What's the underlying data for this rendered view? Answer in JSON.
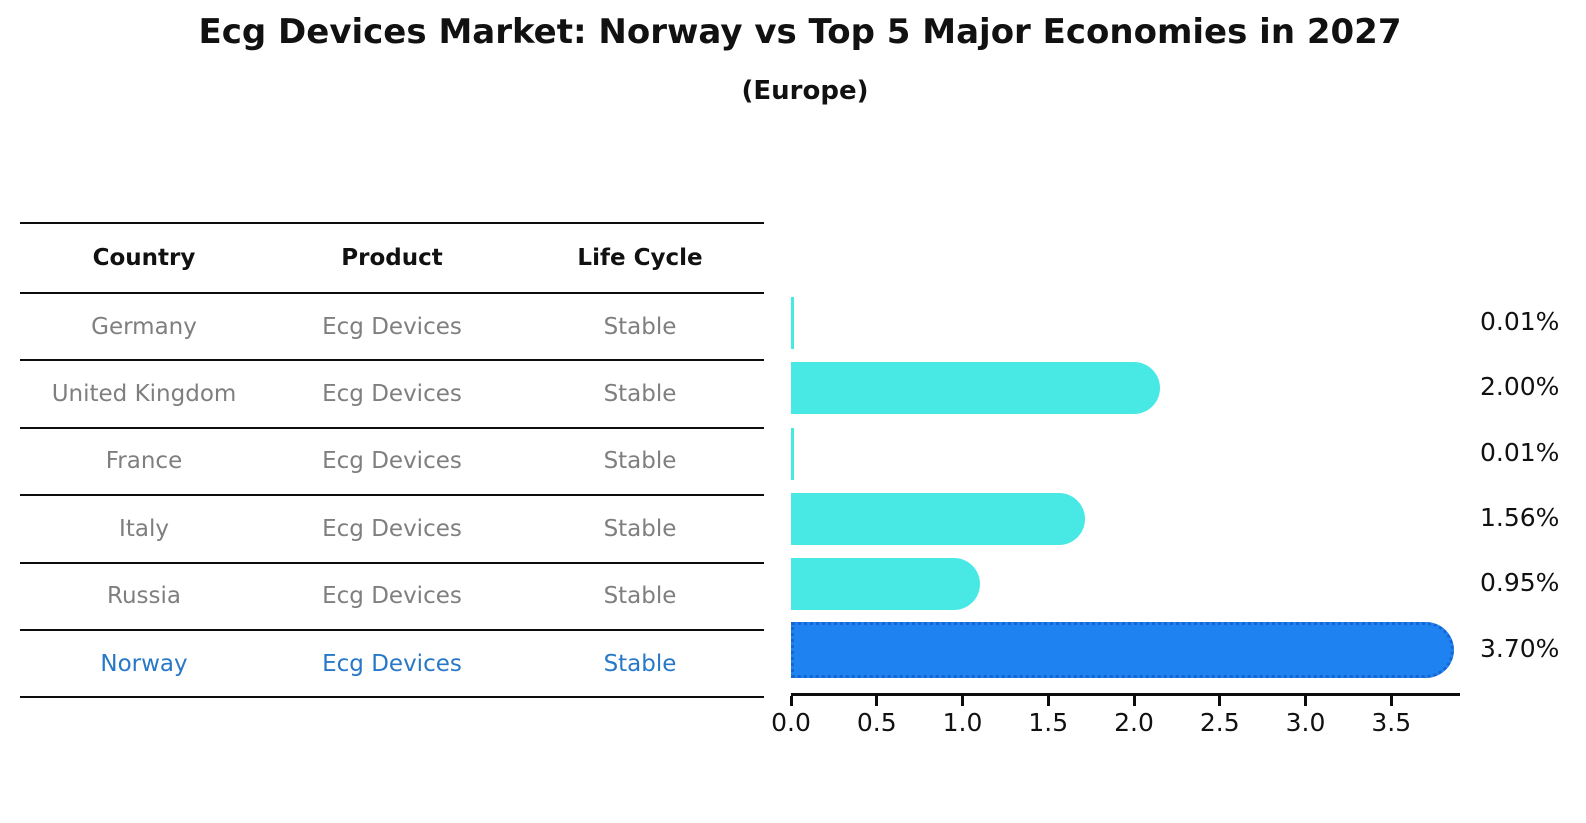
{
  "title": "Ecg Devices Market: Norway vs Top 5 Major Economies in 2027",
  "subtitle": "(Europe)",
  "table": {
    "headers": [
      "Country",
      "Product",
      "Life Cycle"
    ],
    "rows": [
      {
        "country": "Germany",
        "product": "Ecg Devices",
        "life_cycle": "Stable",
        "highlighted": false
      },
      {
        "country": "United Kingdom",
        "product": "Ecg Devices",
        "life_cycle": "Stable",
        "highlighted": false
      },
      {
        "country": "France",
        "product": "Ecg Devices",
        "life_cycle": "Stable",
        "highlighted": false
      },
      {
        "country": "Italy",
        "product": "Ecg Devices",
        "life_cycle": "Stable",
        "highlighted": false
      },
      {
        "country": "Russia",
        "product": "Ecg Devices",
        "life_cycle": "Stable",
        "highlighted": true
      }
    ]
  },
  "chart_data": {
    "type": "bar",
    "orientation": "horizontal",
    "title": "Ecg Devices Market: Norway vs Top 5 Major Economies in 2027",
    "subtitle": "(Europe)",
    "categories": [
      "Germany",
      "United Kingdom",
      "France",
      "Italy",
      "Russia",
      "Norway"
    ],
    "values": [
      0.01,
      2.0,
      0.01,
      1.56,
      0.95,
      3.7
    ],
    "value_labels": [
      "0.01%",
      "2.00%",
      "0.01%",
      "1.56%",
      "0.95%",
      "3.70%"
    ],
    "highlight_index": 5,
    "x_ticks": [
      "0.0",
      "0.5",
      "1.0",
      "1.5",
      "2.0",
      "2.5",
      "3.0",
      "3.5"
    ],
    "xlim": [
      0,
      3.9
    ],
    "xlabel": "",
    "ylabel": "",
    "grid": false,
    "legend": "none",
    "bar_color": "#48e8e4",
    "highlight_color": "#1e82f0",
    "highlight_border_color": "#1565d2",
    "text_color_default": "#7f7f7f",
    "text_color_highlight": "#2878c8",
    "axis_color": "#0d0d0d"
  },
  "norway_row": {
    "country": "Norway",
    "product": "Ecg Devices",
    "life_cycle": "Stable",
    "highlighted": true
  }
}
